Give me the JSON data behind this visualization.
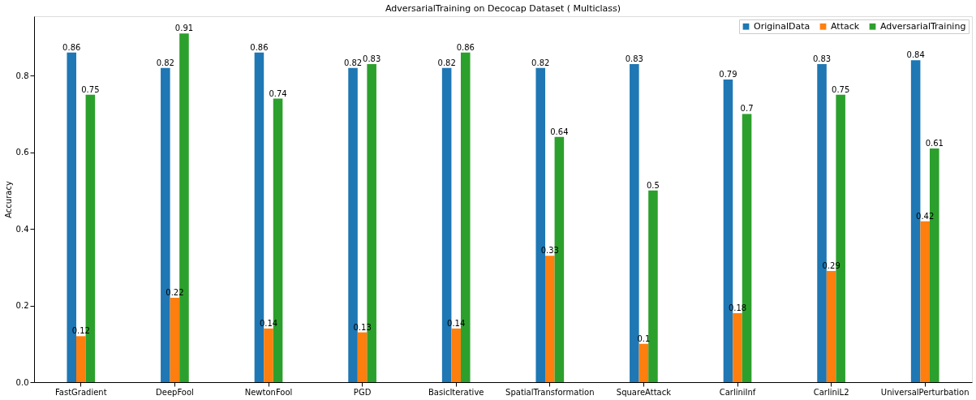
{
  "chart_data": {
    "type": "bar",
    "title": "AdversarialTraining on Decocap Dataset ( Multiclass)",
    "ylabel": "Accuracy",
    "categories": [
      "FastGradient",
      "DeepFool",
      "NewtonFool",
      "PGD",
      "BasicIterative",
      "SpatialTransformation",
      "SquareAttack",
      "CarliniInf",
      "CarliniL2",
      "UniversalPerturbation"
    ],
    "series": [
      {
        "name": "OriginalData",
        "color": "#1f77b4",
        "values": [
          0.86,
          0.82,
          0.86,
          0.82,
          0.82,
          0.82,
          0.83,
          0.79,
          0.83,
          0.84
        ]
      },
      {
        "name": "Attack",
        "color": "#ff7f0e",
        "values": [
          0.12,
          0.22,
          0.14,
          0.13,
          0.14,
          0.33,
          0.1,
          0.18,
          0.29,
          0.42
        ]
      },
      {
        "name": "AdversarialTraining",
        "color": "#2ca02c",
        "values": [
          0.75,
          0.91,
          0.74,
          0.83,
          0.86,
          0.64,
          0.5,
          0.7,
          0.75,
          0.61
        ]
      }
    ],
    "ylim": [
      0,
      0.955
    ],
    "yticks": [
      {
        "value": 0,
        "label": "0.0"
      },
      {
        "value": 0.2,
        "label": "0.2"
      },
      {
        "value": 0.4,
        "label": "0.4"
      },
      {
        "value": 0.6,
        "label": "0.6"
      },
      {
        "value": 0.8,
        "label": "0.8"
      }
    ],
    "data_labels": true,
    "legend": "top right",
    "grid": false
  }
}
